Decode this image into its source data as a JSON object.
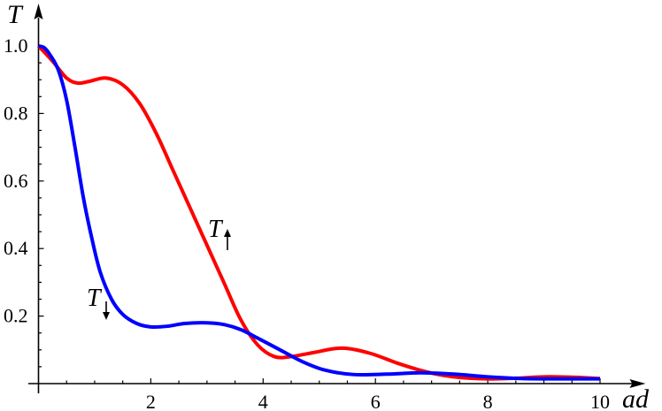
{
  "chart_data": {
    "type": "line",
    "xlabel": "ad",
    "ylabel": "T",
    "xlim": [
      0,
      10.4
    ],
    "ylim": [
      0,
      1.08
    ],
    "xticks": [
      2,
      4,
      6,
      8,
      10
    ],
    "xtick_labels": [
      "2",
      "4",
      "6",
      "8",
      "10"
    ],
    "yticks": [
      0.2,
      0.4,
      0.6,
      0.8,
      1.0
    ],
    "ytick_labels": [
      "0.2",
      "0.4",
      "0.6",
      "0.8",
      "1.0"
    ],
    "grid": false,
    "series": [
      {
        "name": "T↑",
        "color": "#ff0000",
        "x": [
          0,
          0.25,
          0.5,
          0.7,
          0.9,
          1.2,
          1.5,
          1.8,
          2.1,
          2.4,
          2.7,
          3.0,
          3.3,
          3.6,
          3.9,
          4.2,
          4.5,
          4.9,
          5.4,
          5.9,
          6.4,
          6.9,
          7.4,
          8.0,
          8.5,
          9.0,
          9.5,
          10.0
        ],
        "y": [
          1.0,
          0.955,
          0.905,
          0.89,
          0.895,
          0.905,
          0.885,
          0.83,
          0.74,
          0.63,
          0.52,
          0.41,
          0.3,
          0.19,
          0.115,
          0.08,
          0.08,
          0.092,
          0.105,
          0.09,
          0.06,
          0.035,
          0.02,
          0.014,
          0.016,
          0.02,
          0.019,
          0.015
        ]
      },
      {
        "name": "T↓",
        "color": "#0000ff",
        "x": [
          0,
          0.1,
          0.2,
          0.35,
          0.5,
          0.65,
          0.8,
          0.95,
          1.1,
          1.3,
          1.5,
          1.75,
          2.0,
          2.3,
          2.6,
          3.0,
          3.3,
          3.6,
          3.9,
          4.3,
          4.7,
          5.1,
          5.6,
          6.2,
          6.8,
          7.4,
          8.0,
          8.6,
          9.2,
          10.0
        ],
        "y": [
          1.0,
          0.995,
          0.975,
          0.93,
          0.84,
          0.7,
          0.55,
          0.43,
          0.33,
          0.25,
          0.205,
          0.178,
          0.168,
          0.17,
          0.178,
          0.18,
          0.175,
          0.16,
          0.135,
          0.1,
          0.065,
          0.04,
          0.027,
          0.028,
          0.032,
          0.028,
          0.02,
          0.015,
          0.014,
          0.014
        ]
      }
    ],
    "annotations": [
      {
        "text": "T",
        "arrow": "up",
        "near_series": "T↑"
      },
      {
        "text": "T",
        "arrow": "down",
        "near_series": "T↓"
      }
    ]
  }
}
